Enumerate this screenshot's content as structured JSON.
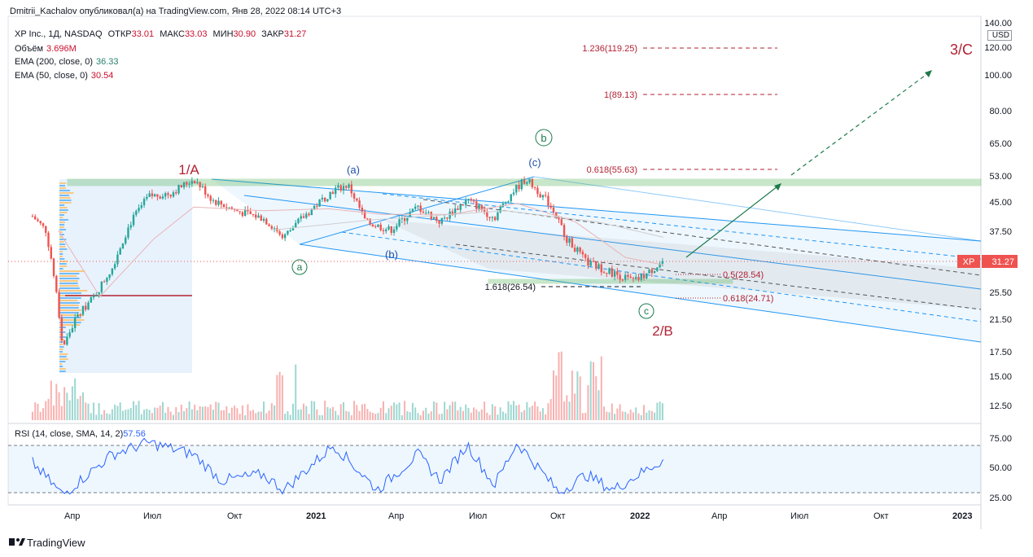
{
  "header": {
    "attribution": "Dmitrii_Kachalov опубликовал(а) на TradingView.com, Янв 28, 2022 08:14 UTC+3"
  },
  "legend": {
    "symbol": "XP Inc., 1Д, NASDAQ",
    "open_label": "ОТКР",
    "open": "33.01",
    "high_label": "МАКС",
    "high": "33.03",
    "low_label": "МИН",
    "low": "30.90",
    "close_label": "ЗАКР",
    "close": "31.27",
    "volume_label": "Объём",
    "volume": "3.696M",
    "ema200_label": "EMA (200, close, 0)",
    "ema200": "36.33",
    "ema50_label": "EMA (50, close, 0)",
    "ema50": "30.54"
  },
  "rsi": {
    "label": "RSI (14, close, SMA, 14, 2)",
    "value": "57.56",
    "upper": 70,
    "lower": 30
  },
  "price_axis": {
    "currency": "USD",
    "ticks": [
      "140.00",
      "120.00",
      "100.00",
      "80.00",
      "65.00",
      "53.00",
      "45.00",
      "37.50",
      "31.27",
      "25.50",
      "21.50",
      "17.50",
      "15.00",
      "12.50"
    ],
    "price_tag_label": "XP",
    "price_tag_value": "31.27"
  },
  "rsi_axis": {
    "ticks": [
      "75.00",
      "50.00",
      "25.00"
    ]
  },
  "time_axis": {
    "ticks": [
      {
        "label": "Апр",
        "bold": false
      },
      {
        "label": "Июл",
        "bold": false
      },
      {
        "label": "Окт",
        "bold": false
      },
      {
        "label": "2021",
        "bold": true
      },
      {
        "label": "Апр",
        "bold": false
      },
      {
        "label": "Июл",
        "bold": false
      },
      {
        "label": "Окт",
        "bold": false
      },
      {
        "label": "2022",
        "bold": true
      },
      {
        "label": "Апр",
        "bold": false
      },
      {
        "label": "Июл",
        "bold": false
      },
      {
        "label": "Окт",
        "bold": false
      },
      {
        "label": "2023",
        "bold": true
      }
    ]
  },
  "annotations": {
    "wave_1A": "1/A",
    "wave_2B": "2/B",
    "wave_3C": "3/C",
    "circle_a": "a",
    "circle_b": "b",
    "circle_c": "c",
    "paren_a": "(a)",
    "paren_b": "(b)",
    "paren_c": "(c)",
    "fib_1236": "1.236(119.25)",
    "fib_1": "1(89.13)",
    "fib_0618_up": "0.618(55.63)",
    "fib_1618": "1.618(26.54)",
    "fib_05": "0.5(28.54)",
    "fib_0618_dn": "0.618(24.71)"
  },
  "colors": {
    "up": "#26a69a",
    "down": "#ef5350",
    "wave_red": "#b22234",
    "channel_blue": "#2196f3",
    "zone_green": "#4caf50",
    "rsi_line": "#2962ff"
  },
  "footer": {
    "brand": "TradingView"
  },
  "chart_data": {
    "type": "candlestick",
    "symbol": "XP",
    "exchange": "NASDAQ",
    "interval": "1D",
    "last_price": 31.27,
    "ohlc_last": {
      "open": 33.01,
      "high": 33.03,
      "low": 30.9,
      "close": 31.27
    },
    "y_scale": "log",
    "ylim": [
      11,
      150
    ],
    "price_path": [
      {
        "x": "2020-02-15",
        "y": 41.5
      },
      {
        "x": "2020-03-01",
        "y": 38.0
      },
      {
        "x": "2020-03-20",
        "y": 18.0
      },
      {
        "x": "2020-04-05",
        "y": 22.0
      },
      {
        "x": "2020-04-25",
        "y": 25.0
      },
      {
        "x": "2020-05-15",
        "y": 30.0
      },
      {
        "x": "2020-06-05",
        "y": 40.0
      },
      {
        "x": "2020-06-25",
        "y": 47.0
      },
      {
        "x": "2020-07-20",
        "y": 48.0
      },
      {
        "x": "2020-08-15",
        "y": 52.5
      },
      {
        "x": "2020-09-05",
        "y": 46.0
      },
      {
        "x": "2020-10-01",
        "y": 43.0
      },
      {
        "x": "2020-11-01",
        "y": 41.0
      },
      {
        "x": "2020-11-25",
        "y": 36.5
      },
      {
        "x": "2020-12-20",
        "y": 42.0
      },
      {
        "x": "2021-01-20",
        "y": 49.0
      },
      {
        "x": "2021-02-05",
        "y": 50.5
      },
      {
        "x": "2021-02-25",
        "y": 40.0
      },
      {
        "x": "2021-03-25",
        "y": 38.0
      },
      {
        "x": "2021-04-25",
        "y": 44.0
      },
      {
        "x": "2021-05-20",
        "y": 40.0
      },
      {
        "x": "2021-06-20",
        "y": 46.0
      },
      {
        "x": "2021-07-20",
        "y": 41.0
      },
      {
        "x": "2021-08-10",
        "y": 48.5
      },
      {
        "x": "2021-08-25",
        "y": 52.5
      },
      {
        "x": "2021-09-20",
        "y": 45.0
      },
      {
        "x": "2021-10-10",
        "y": 36.0
      },
      {
        "x": "2021-11-01",
        "y": 31.0
      },
      {
        "x": "2021-12-01",
        "y": 29.0
      },
      {
        "x": "2021-12-25",
        "y": 27.5
      },
      {
        "x": "2022-01-10",
        "y": 29.0
      },
      {
        "x": "2022-01-27",
        "y": 31.27
      }
    ],
    "ema50": [
      {
        "x": "2020-03-15",
        "y": 38.0
      },
      {
        "x": "2020-05-01",
        "y": 25.0
      },
      {
        "x": "2020-07-01",
        "y": 36.0
      },
      {
        "x": "2020-08-15",
        "y": 44.0
      },
      {
        "x": "2020-11-01",
        "y": 43.0
      },
      {
        "x": "2021-01-15",
        "y": 43.5
      },
      {
        "x": "2021-03-15",
        "y": 42.0
      },
      {
        "x": "2021-06-01",
        "y": 42.0
      },
      {
        "x": "2021-08-15",
        "y": 45.0
      },
      {
        "x": "2021-10-20",
        "y": 40.0
      },
      {
        "x": "2021-12-15",
        "y": 32.0
      },
      {
        "x": "2022-01-27",
        "y": 30.54
      }
    ],
    "ema200": [
      {
        "x": "2020-11-10",
        "y": 38.0
      },
      {
        "x": "2021-03-01",
        "y": 40.5
      },
      {
        "x": "2021-08-01",
        "y": 43.0
      },
      {
        "x": "2021-11-15",
        "y": 40.0
      },
      {
        "x": "2022-01-27",
        "y": 36.33
      }
    ],
    "volume_last": "3.696M",
    "rsi": {
      "period": 14,
      "last": 57.56,
      "levels": [
        30,
        70
      ],
      "ylim": [
        20,
        80
      ],
      "values": [
        {
          "x": "2020-02-15",
          "y": 55
        },
        {
          "x": "2020-03-20",
          "y": 28
        },
        {
          "x": "2020-05-15",
          "y": 62
        },
        {
          "x": "2020-06-25",
          "y": 72
        },
        {
          "x": "2020-08-15",
          "y": 62
        },
        {
          "x": "2020-09-15",
          "y": 40
        },
        {
          "x": "2020-11-01",
          "y": 45
        },
        {
          "x": "2020-11-25",
          "y": 32
        },
        {
          "x": "2021-01-20",
          "y": 70
        },
        {
          "x": "2021-03-10",
          "y": 32
        },
        {
          "x": "2021-04-25",
          "y": 62
        },
        {
          "x": "2021-05-20",
          "y": 40
        },
        {
          "x": "2021-06-20",
          "y": 70
        },
        {
          "x": "2021-07-20",
          "y": 36
        },
        {
          "x": "2021-08-15",
          "y": 72
        },
        {
          "x": "2021-10-01",
          "y": 30
        },
        {
          "x": "2021-11-01",
          "y": 45
        },
        {
          "x": "2021-12-01",
          "y": 32
        },
        {
          "x": "2022-01-10",
          "y": 50
        },
        {
          "x": "2022-01-27",
          "y": 57.56
        }
      ]
    }
  }
}
